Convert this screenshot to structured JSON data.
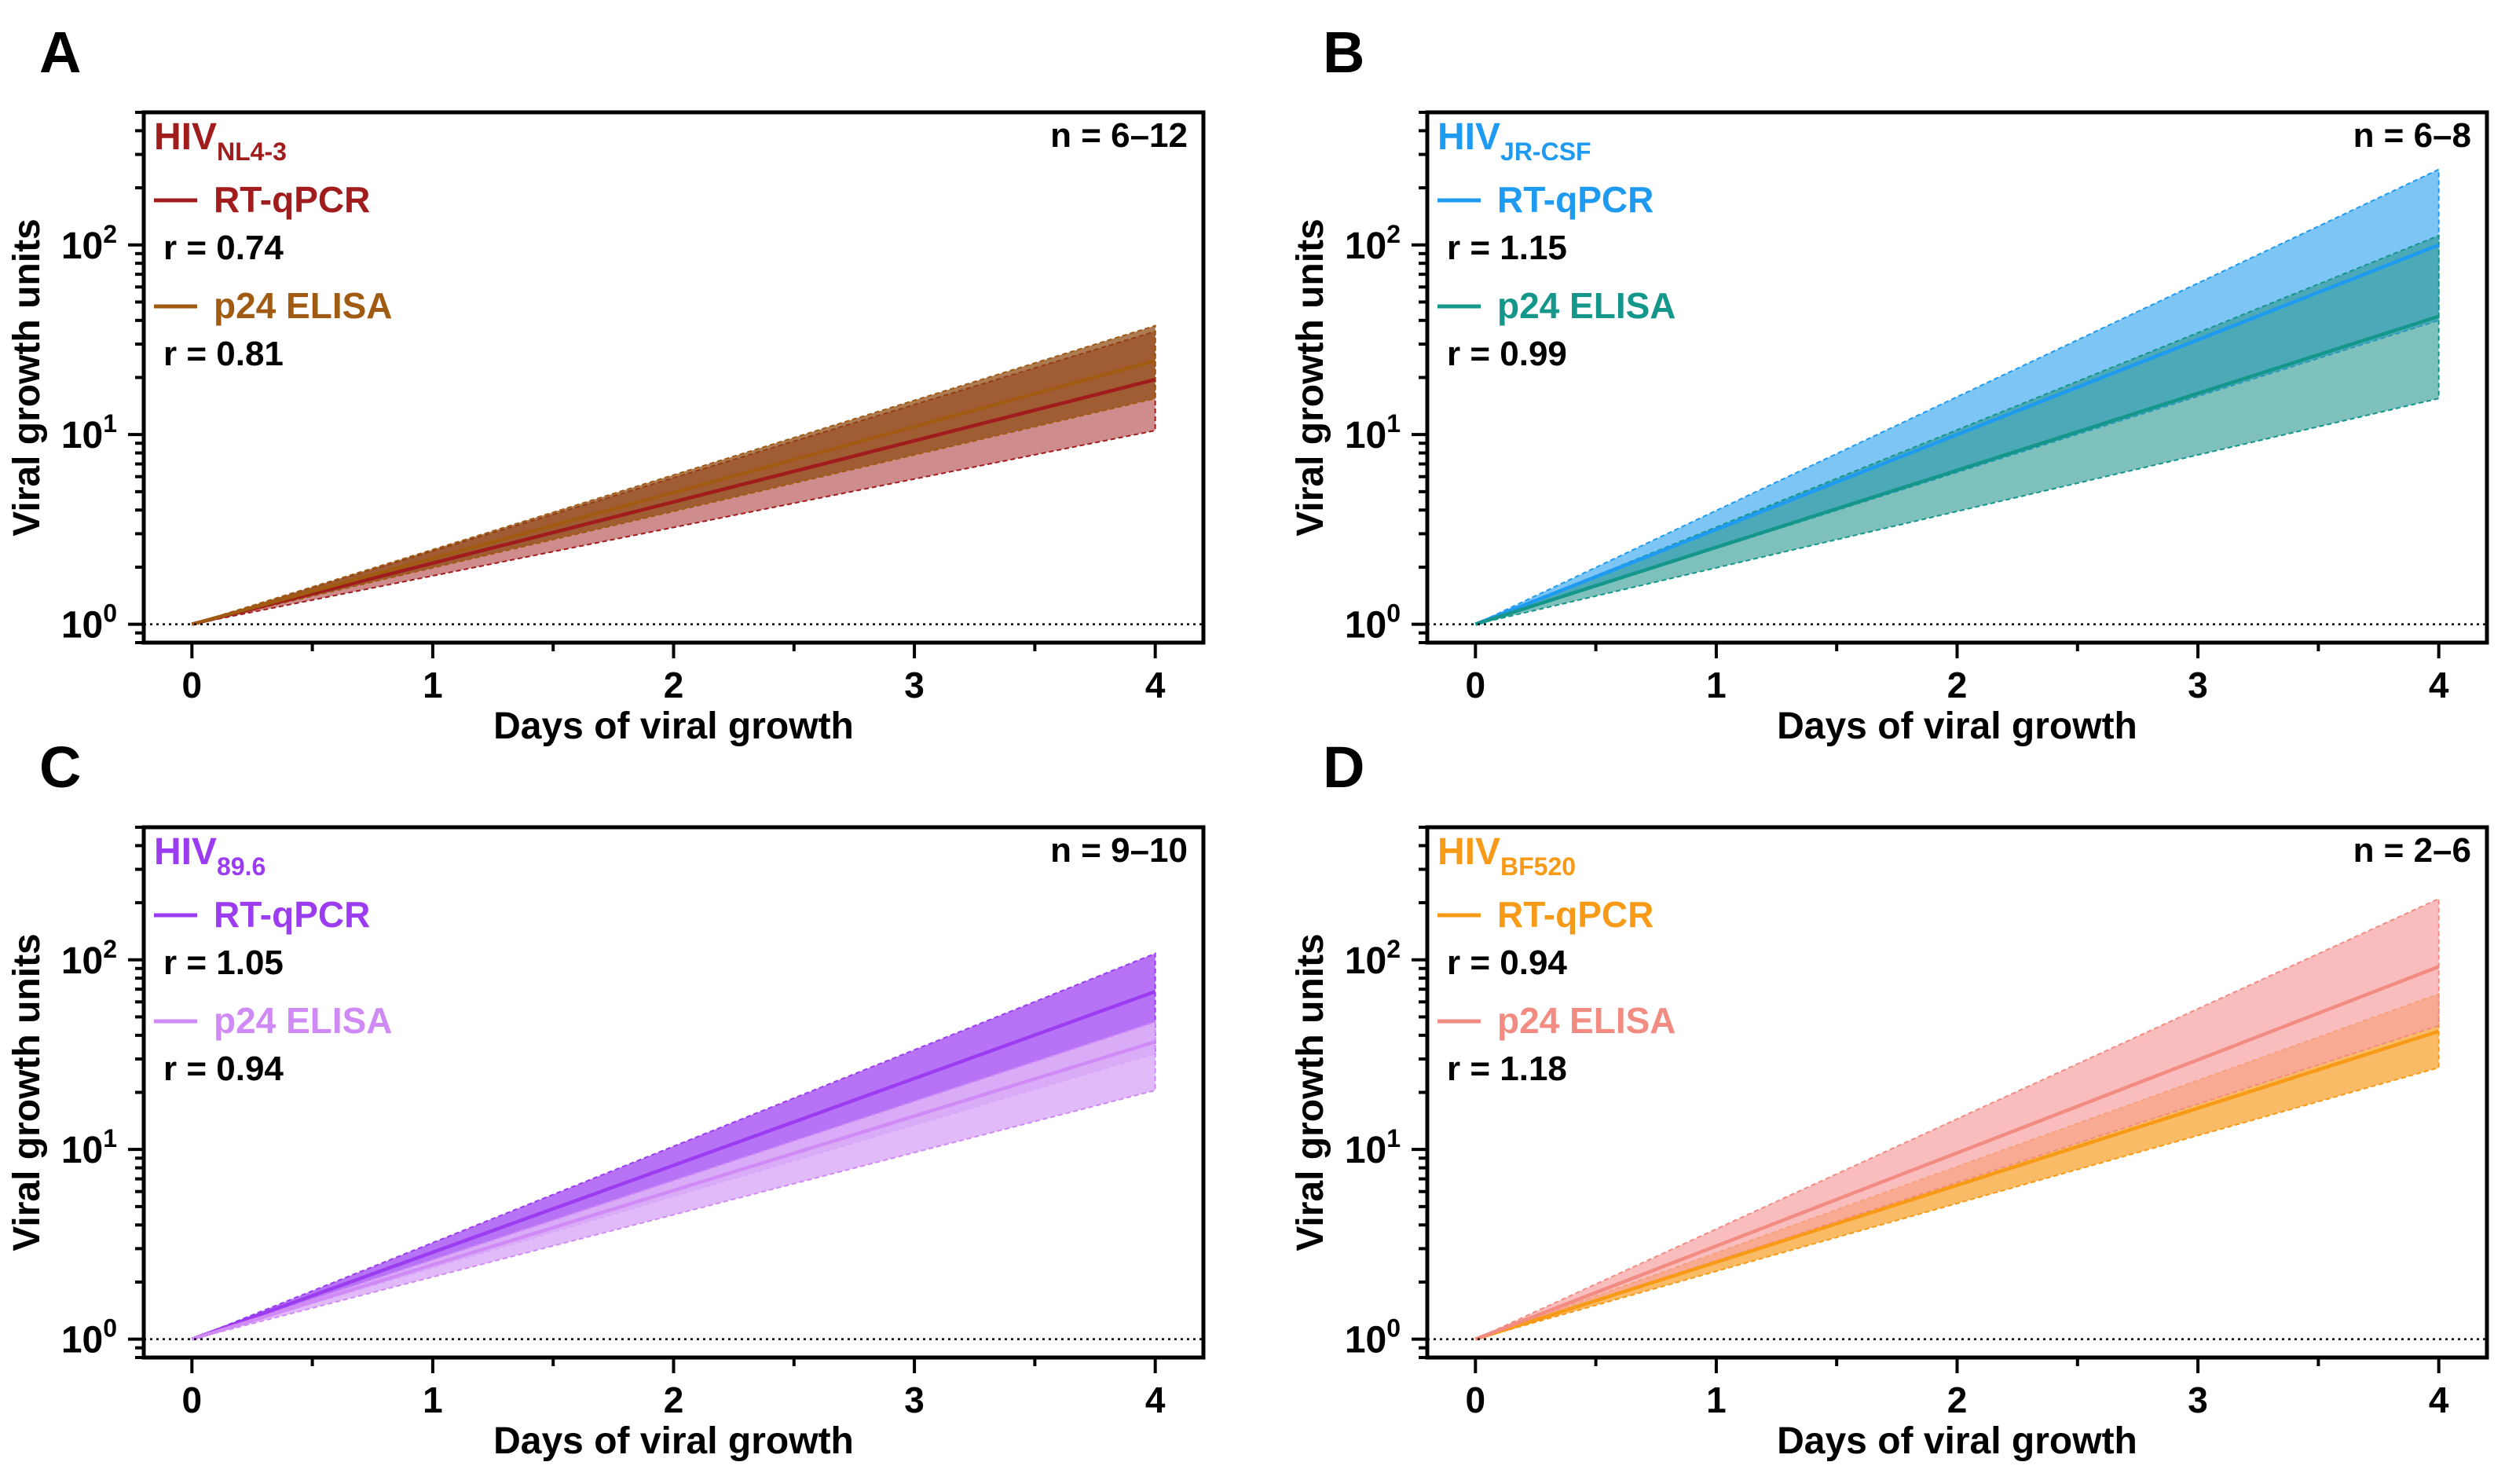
{
  "figure": {
    "xlabel": "Days of viral growth",
    "ylabel": "Viral growth units"
  },
  "chart_data": [
    {
      "type": "line",
      "panel": "A",
      "virus_base": "HIV",
      "virus_sub": "NL4-3",
      "virus_color": "#A11C1C",
      "n_label": "n = 6–12",
      "xlabel": "Days of viral growth",
      "ylabel": "Viral growth units",
      "x_ticks": [
        "0",
        "1",
        "2",
        "3",
        "4"
      ],
      "y_ticks": [
        {
          "base": "10",
          "exp": "0"
        },
        {
          "base": "10",
          "exp": "1"
        },
        {
          "base": "10",
          "exp": "2"
        }
      ],
      "xlim": [
        -0.2,
        4.2
      ],
      "ylim": [
        0.8,
        500
      ],
      "yscale": "log",
      "reference_line_y": 1,
      "series": [
        {
          "name": "RT-qPCR",
          "r_label": "r = 0.74",
          "color": "#A11C1C",
          "band_color": "#C06B6B",
          "band_opacity": 0.78,
          "x": [
            0,
            4
          ],
          "y": [
            1,
            19.5
          ],
          "band_low": [
            1,
            10.5
          ],
          "band_high": [
            1,
            35
          ]
        },
        {
          "name": "p24 ELISA",
          "r_label": "r = 0.81",
          "color": "#A05A12",
          "band_color": "#8F4A10",
          "band_opacity": 0.72,
          "x": [
            0,
            4
          ],
          "y": [
            1,
            24.5
          ],
          "band_low": [
            1,
            15.5
          ],
          "band_high": [
            1,
            37.5
          ]
        }
      ]
    },
    {
      "type": "line",
      "panel": "B",
      "virus_base": "HIV",
      "virus_sub": "JR-CSF",
      "virus_color": "#1E9BF0",
      "n_label": "n = 6–8",
      "xlabel": "Days of viral growth",
      "ylabel": "Viral growth units",
      "x_ticks": [
        "0",
        "1",
        "2",
        "3",
        "4"
      ],
      "y_ticks": [
        {
          "base": "10",
          "exp": "0"
        },
        {
          "base": "10",
          "exp": "1"
        },
        {
          "base": "10",
          "exp": "2"
        }
      ],
      "xlim": [
        -0.2,
        4.2
      ],
      "ylim": [
        0.8,
        500
      ],
      "yscale": "log",
      "reference_line_y": 1,
      "series": [
        {
          "name": "RT-qPCR",
          "r_label": "r = 1.15",
          "color": "#1E9BF0",
          "band_color": "#4AAEF0",
          "band_opacity": 0.72,
          "x": [
            0,
            4
          ],
          "y": [
            1,
            100
          ],
          "band_low": [
            1,
            40
          ],
          "band_high": [
            1,
            250
          ]
        },
        {
          "name": "p24 ELISA",
          "r_label": "r = 0.99",
          "color": "#15968A",
          "band_color": "#2F9A93",
          "band_opacity": 0.62,
          "x": [
            0,
            4
          ],
          "y": [
            1,
            42
          ],
          "band_low": [
            1,
            15.5
          ],
          "band_high": [
            1,
            112
          ]
        }
      ]
    },
    {
      "type": "line",
      "panel": "C",
      "virus_base": "HIV",
      "virus_sub": "89.6",
      "virus_color": "#9B3CF0",
      "n_label": "n = 9–10",
      "xlabel": "Days of viral growth",
      "ylabel": "Viral growth units",
      "x_ticks": [
        "0",
        "1",
        "2",
        "3",
        "4"
      ],
      "y_ticks": [
        {
          "base": "10",
          "exp": "0"
        },
        {
          "base": "10",
          "exp": "1"
        },
        {
          "base": "10",
          "exp": "2"
        }
      ],
      "xlim": [
        -0.2,
        4.2
      ],
      "ylim": [
        0.8,
        500
      ],
      "yscale": "log",
      "reference_line_y": 1,
      "series": [
        {
          "name": "RT-qPCR",
          "r_label": "r = 1.05",
          "color": "#9B3CF0",
          "band_color": "#A24BF2",
          "band_opacity": 0.78,
          "x": [
            0,
            4
          ],
          "y": [
            1,
            68
          ],
          "band_low": [
            1,
            32
          ],
          "band_high": [
            1,
            108
          ]
        },
        {
          "name": "p24 ELISA",
          "r_label": "r = 0.94",
          "color": "#D08AF5",
          "band_color": "#DEB2F8",
          "band_opacity": 0.9,
          "x": [
            0,
            4
          ],
          "y": [
            1,
            37
          ],
          "band_low": [
            1,
            20.5
          ],
          "band_high": [
            1,
            47
          ]
        }
      ]
    },
    {
      "type": "line",
      "panel": "D",
      "virus_base": "HIV",
      "virus_sub": "BF520",
      "virus_color": "#F79A17",
      "n_label": "n = 2–6",
      "xlabel": "Days of viral growth",
      "ylabel": "Viral growth units",
      "x_ticks": [
        "0",
        "1",
        "2",
        "3",
        "4"
      ],
      "y_ticks": [
        {
          "base": "10",
          "exp": "0"
        },
        {
          "base": "10",
          "exp": "1"
        },
        {
          "base": "10",
          "exp": "2"
        }
      ],
      "xlim": [
        -0.2,
        4.2
      ],
      "ylim": [
        0.8,
        500
      ],
      "yscale": "log",
      "reference_line_y": 1,
      "series": [
        {
          "name": "RT-qPCR",
          "r_label": "r = 0.94",
          "color": "#F79A17",
          "band_color": "#F7A83A",
          "band_opacity": 0.78,
          "x": [
            0,
            4
          ],
          "y": [
            1,
            42
          ],
          "band_low": [
            1,
            27
          ],
          "band_high": [
            1,
            66
          ]
        },
        {
          "name": "p24 ELISA",
          "r_label": "r = 1.18",
          "color": "#F28B82",
          "band_color": "#F6A3A3",
          "band_opacity": 0.72,
          "x": [
            0,
            4
          ],
          "y": [
            1,
            92
          ],
          "band_low": [
            1,
            45
          ],
          "band_high": [
            1,
            210
          ]
        }
      ]
    }
  ]
}
